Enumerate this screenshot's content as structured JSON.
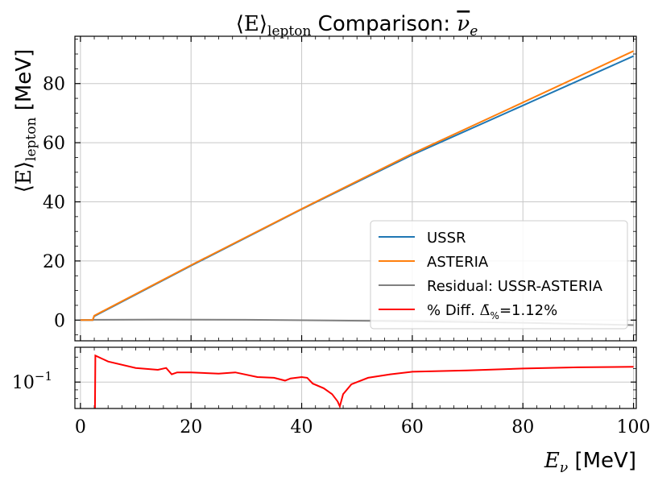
{
  "chart_data": [
    {
      "type": "line",
      "title": "⟨E⟩lepton Comparison: ν̄e",
      "title_parts": {
        "main": "⟨E⟩",
        "sub": "lepton",
        "text": " Comparison: ",
        "nu": "ν",
        "nu_sub": "e"
      },
      "xlabel": "Eν [MeV]",
      "xlabel_parts": {
        "main": "E",
        "sub": "ν",
        "unit": " [MeV]"
      },
      "ylabel": "⟨E⟩lepton [MeV]",
      "ylabel_parts": {
        "main": "⟨E⟩",
        "sub": "lepton",
        "unit": " [MeV]"
      },
      "xlim": [
        -1,
        100.5
      ],
      "ylim": [
        -7,
        96
      ],
      "grid": true,
      "legend_position": "lower-right",
      "y_ticks": [
        0,
        20,
        40,
        60,
        80
      ],
      "y_tick_labels": [
        "0",
        "20",
        "40",
        "60",
        "80"
      ],
      "x_ticks": [
        0,
        20,
        40,
        60,
        80,
        100
      ],
      "series": [
        {
          "name": "USSR",
          "color": "#1f77b4",
          "x": [
            0,
            2.2,
            2.5,
            20,
            40,
            60,
            80,
            100
          ],
          "y": [
            0,
            0,
            1.3,
            18.4,
            37.5,
            55.9,
            72.6,
            89.3
          ]
        },
        {
          "name": "ASTERIA",
          "color": "#ff7f0e",
          "x": [
            0,
            2.2,
            2.5,
            20,
            40,
            60,
            80,
            100
          ],
          "y": [
            0,
            0,
            1.5,
            18.6,
            37.6,
            56.3,
            73.6,
            91.0
          ]
        },
        {
          "name": "Residual: USSR-ASTERIA",
          "color": "#808080",
          "x": [
            0,
            2.2,
            2.5,
            15,
            30,
            45,
            60,
            80,
            100
          ],
          "y": [
            0,
            0,
            0.1,
            0.2,
            0.1,
            -0.1,
            -0.4,
            -0.9,
            -1.7
          ]
        }
      ]
    },
    {
      "type": "line",
      "xlabel": "Eν [MeV]",
      "ylabel": "",
      "y_scale": "log",
      "xlim": [
        -1,
        100.5
      ],
      "ylim": [
        0.07,
        0.16
      ],
      "grid": true,
      "x_ticks": [
        0,
        20,
        40,
        60,
        80,
        100
      ],
      "x_tick_labels": [
        "0",
        "20",
        "40",
        "60",
        "80",
        "100"
      ],
      "y_ticks": [
        0.1
      ],
      "y_tick_label_parts": {
        "base": "10",
        "exp": "−1"
      },
      "series": [
        {
          "name": "% Diff. Δ̄%=1.12%",
          "name_parts": {
            "text": "% Diff. ",
            "delta": "Δ̄",
            "sub": "%",
            "tail": "=1.12%"
          },
          "color": "#ff0000",
          "x": [
            2.6,
            2.7,
            5,
            10,
            14,
            15.5,
            16.5,
            17.5,
            20,
            25,
            28,
            32,
            35,
            37,
            38,
            40,
            41,
            42,
            44,
            45.5,
            46.5,
            46.9,
            47.5,
            49,
            52,
            56,
            60,
            70,
            80,
            90,
            100
          ],
          "y": [
            0.05,
            0.143,
            0.132,
            0.121,
            0.118,
            0.121,
            0.111,
            0.114,
            0.114,
            0.112,
            0.114,
            0.107,
            0.106,
            0.102,
            0.105,
            0.107,
            0.106,
            0.098,
            0.092,
            0.085,
            0.077,
            0.072,
            0.085,
            0.097,
            0.106,
            0.111,
            0.115,
            0.117,
            0.12,
            0.122,
            0.123
          ]
        }
      ]
    }
  ]
}
